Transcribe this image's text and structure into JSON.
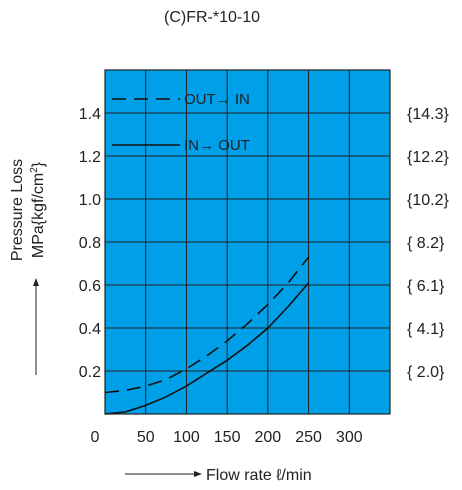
{
  "chart_data": {
    "type": "line",
    "title": "(C)FR-*10-10",
    "ylabel_main": "Pressure Loss",
    "ylabel_unit_prefix": "MPa{kgf/cm",
    "ylabel_unit_sup": "2",
    "ylabel_unit_suffix": "}",
    "xlabel": "Flow rate ℓ/min",
    "xlim": [
      0,
      350
    ],
    "ylim": [
      0,
      1.6
    ],
    "x_ticks": [
      {
        "value": 0,
        "label": "0"
      },
      {
        "value": 50,
        "label": "50"
      },
      {
        "value": 100,
        "label": "100"
      },
      {
        "value": 150,
        "label": "150"
      },
      {
        "value": 200,
        "label": "200"
      },
      {
        "value": 250,
        "label": "250"
      },
      {
        "value": 300,
        "label": "300"
      }
    ],
    "y_ticks": [
      {
        "value": 0.2,
        "label": "0.2"
      },
      {
        "value": 0.4,
        "label": "0.4"
      },
      {
        "value": 0.6,
        "label": "0.6"
      },
      {
        "value": 0.8,
        "label": "0.8"
      },
      {
        "value": 1.0,
        "label": "1.0"
      },
      {
        "value": 1.2,
        "label": "1.2"
      },
      {
        "value": 1.4,
        "label": "1.4"
      }
    ],
    "y2_ticks": [
      {
        "value": 0.2,
        "label": "{ 2.0}"
      },
      {
        "value": 0.4,
        "label": "{ 4.1}"
      },
      {
        "value": 0.6,
        "label": "{ 6.1}"
      },
      {
        "value": 0.8,
        "label": "{ 8.2}"
      },
      {
        "value": 1.0,
        "label": "{10.2}"
      },
      {
        "value": 1.2,
        "label": "{12.2}"
      },
      {
        "value": 1.4,
        "label": "{14.3}"
      }
    ],
    "grid": true,
    "background_color": "#00a0e9",
    "series": [
      {
        "name": "OUT→ IN",
        "style": "dashed",
        "x": [
          0,
          25,
          50,
          75,
          100,
          125,
          150,
          175,
          200,
          225,
          250
        ],
        "y": [
          0.1,
          0.11,
          0.13,
          0.16,
          0.21,
          0.27,
          0.34,
          0.42,
          0.51,
          0.61,
          0.73
        ]
      },
      {
        "name": "IN→ OUT",
        "style": "solid",
        "x": [
          0,
          25,
          50,
          75,
          100,
          125,
          150,
          175,
          200,
          225,
          250
        ],
        "y": [
          0.0,
          0.01,
          0.04,
          0.08,
          0.13,
          0.19,
          0.25,
          0.32,
          0.4,
          0.5,
          0.61
        ]
      }
    ],
    "legend_position": "top-left"
  }
}
